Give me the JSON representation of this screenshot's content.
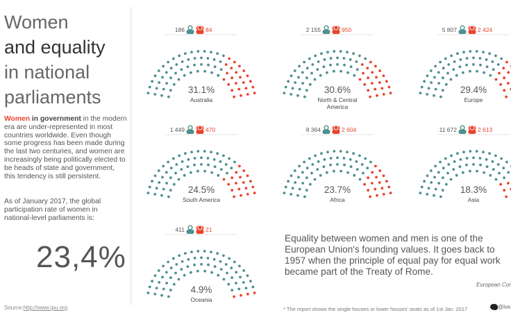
{
  "left": {
    "title_lines": [
      "Women",
      "and equality",
      "in national",
      "parliaments"
    ],
    "intro_red": "Women",
    "intro_bold": " in government",
    "intro_rest": " in the modern era are under-represented in most countries worldwide. Even though some progress has been made during the last two centuries, and women are increasingly being politically elected to be heads of state and government, this tendency is still persistent.",
    "intro2": "As of January 2017, the global participation rate of women in national-level parliaments is:",
    "global_rate": "23,4%",
    "source_prefix": "Source:",
    "source_link": "http://www.ipu.org"
  },
  "quote": "Equality between women and men is one of the European Union's founding values. It goes back to 1957 when the principle of equal pay for equal work became part of the Treaty of Rome.",
  "quote_attribution": "European Commission",
  "footnote": "* The report shows the single houses or lower houses' seats as of 1st Jan. 2017",
  "twitter_handle": "@lve",
  "colors": {
    "men": "#4f8f8f",
    "women": "#e8442e"
  },
  "icons": {
    "men": "man-icon",
    "women": "woman-icon"
  },
  "chart_data": {
    "type": "parliament",
    "series_names": [
      "men",
      "women"
    ],
    "regions": [
      {
        "name": "Australia",
        "men": 186,
        "women": 84,
        "women_pct": "31.1%"
      },
      {
        "name": "North & Central America",
        "men": 2155,
        "women": 950,
        "women_pct": "30.6%"
      },
      {
        "name": "Europe",
        "men": 5807,
        "women": 2424,
        "women_pct": "29.4%"
      },
      {
        "name": "South America",
        "men": 1449,
        "women": 470,
        "women_pct": "24.5%"
      },
      {
        "name": "Africa",
        "men": 8364,
        "women": 2604,
        "women_pct": "23.7%"
      },
      {
        "name": "Asia",
        "men": 11672,
        "women": 2613,
        "women_pct": "18.3%"
      },
      {
        "name": "Oceania",
        "men": 411,
        "women": 21,
        "women_pct": "4.9%"
      }
    ],
    "count_labels": [
      {
        "men": "186",
        "women": "84"
      },
      {
        "men": "2 155",
        "women": "950"
      },
      {
        "men": "5 807",
        "women": "2 424"
      },
      {
        "men": "1 449",
        "women": "470"
      },
      {
        "men": "8 364",
        "women": "2 604"
      },
      {
        "men": "11 672",
        "women": "2 613"
      },
      {
        "men": "411",
        "women": "21"
      }
    ],
    "region_labels": [
      [
        "Australia"
      ],
      [
        "North & Central",
        "America"
      ],
      [
        "Europe"
      ],
      [
        "South America"
      ],
      [
        "Africa"
      ],
      [
        "Asia"
      ],
      [
        "Oceania"
      ]
    ]
  }
}
